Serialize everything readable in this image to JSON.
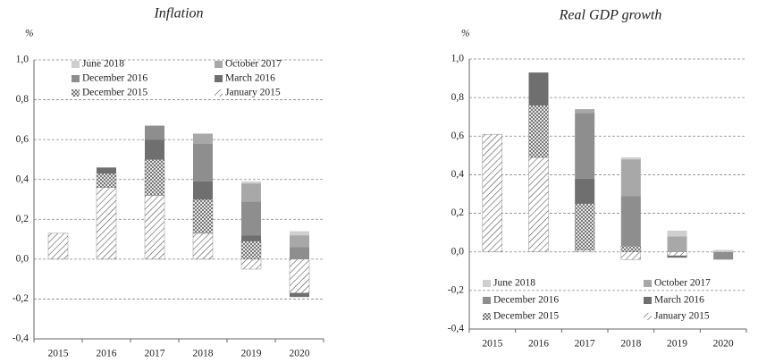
{
  "chart_data": [
    {
      "type": "bar",
      "stacked": true,
      "title": "Inflation",
      "ylabel": "%",
      "categories": [
        "2015",
        "2016",
        "2017",
        "2018",
        "2019",
        "2020"
      ],
      "series": [
        {
          "name": "June 2018",
          "color": "#cfcfcf",
          "values": [
            0,
            0,
            0,
            0,
            0.01,
            0.02
          ]
        },
        {
          "name": "October 2017",
          "color": "#a8a8a8",
          "values": [
            0,
            0,
            0,
            0.05,
            0.09,
            0.06
          ]
        },
        {
          "name": "December 2016",
          "color": "#8e8e8e",
          "values": [
            0,
            0,
            0.07,
            0.19,
            0.17,
            0.06
          ]
        },
        {
          "name": "March 2016",
          "color": "#6f6f6f",
          "values": [
            0,
            0.03,
            0.1,
            0.09,
            0.03,
            -0.02
          ]
        },
        {
          "name": "December 2015",
          "color": "#9a9a9a",
          "pattern": "crosshatch",
          "values": [
            0,
            0.07,
            0.18,
            0.17,
            0.09,
            0
          ]
        },
        {
          "name": "January 2015",
          "color": "#555555",
          "pattern": "hatch",
          "values": [
            0.13,
            0.36,
            0.32,
            0.13,
            -0.05,
            -0.17
          ]
        }
      ],
      "ylim": [
        -0.4,
        1.0
      ],
      "yticks": [
        {
          "value": -0.4,
          "label": "-0,4"
        },
        {
          "value": -0.2,
          "label": "-0,2"
        },
        {
          "value": 0,
          "label": "0,0"
        },
        {
          "value": 0.2,
          "label": "0,2"
        },
        {
          "value": 0.4,
          "label": "0,4"
        },
        {
          "value": 0.6,
          "label": "0,6"
        },
        {
          "value": 0.8,
          "label": "0,8"
        },
        {
          "value": 1.0,
          "label": "1,0"
        }
      ],
      "grid": true,
      "legend": "upper center"
    },
    {
      "type": "bar",
      "stacked": true,
      "title": "Real GDP  growth",
      "ylabel": "%",
      "categories": [
        "2015",
        "2016",
        "2017",
        "2018",
        "2019",
        "2020"
      ],
      "series": [
        {
          "name": "June 2018",
          "color": "#cfcfcf",
          "values": [
            0,
            0,
            0,
            0.01,
            0.03,
            0.01
          ]
        },
        {
          "name": "October 2017",
          "color": "#a8a8a8",
          "values": [
            0,
            0,
            0.02,
            0.19,
            0.08,
            0
          ]
        },
        {
          "name": "December 2016",
          "color": "#8e8e8e",
          "values": [
            0,
            0,
            0.34,
            0.26,
            0,
            -0.04
          ]
        },
        {
          "name": "March 2016",
          "color": "#6f6f6f",
          "values": [
            0,
            0.17,
            0.13,
            0,
            -0.01,
            0
          ]
        },
        {
          "name": "December 2015",
          "color": "#9a9a9a",
          "pattern": "crosshatch",
          "values": [
            0,
            0.27,
            0.24,
            0.03,
            0,
            0
          ]
        },
        {
          "name": "January 2015",
          "color": "#555555",
          "pattern": "hatch",
          "values": [
            0.61,
            0.49,
            0.01,
            -0.04,
            -0.02,
            0
          ]
        }
      ],
      "ylim": [
        -0.4,
        1.0
      ],
      "yticks": [
        {
          "value": -0.4,
          "label": "-0,4"
        },
        {
          "value": -0.2,
          "label": "-0,2"
        },
        {
          "value": 0,
          "label": "0,0"
        },
        {
          "value": 0.2,
          "label": "0,2"
        },
        {
          "value": 0.4,
          "label": "0,4"
        },
        {
          "value": 0.6,
          "label": "0,6"
        },
        {
          "value": 0.8,
          "label": "0,8"
        },
        {
          "value": 1.0,
          "label": "1,0"
        }
      ],
      "grid": true,
      "legend": "lower center"
    }
  ]
}
